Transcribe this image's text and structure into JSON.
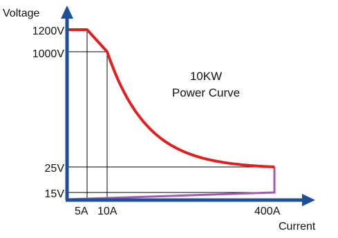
{
  "chart_data": {
    "type": "line",
    "title": "10KW",
    "subtitle": "Power Curve",
    "ylabel": "Voltage",
    "xlabel": "Current",
    "x_ticks": [
      "5A",
      "10A",
      "400A"
    ],
    "y_ticks": [
      "1200V",
      "1000V",
      "25V",
      "15V"
    ],
    "series": [
      {
        "points": [
          [
            0,
            1200
          ],
          [
            5,
            1200
          ],
          [
            10,
            1000
          ],
          [
            20,
            500
          ],
          [
            50,
            200
          ],
          [
            100,
            100
          ],
          [
            200,
            50
          ],
          [
            300,
            33
          ],
          [
            400,
            25
          ],
          [
            400,
            15
          ],
          [
            0,
            0
          ]
        ]
      }
    ],
    "colors": {
      "axis": "#1f4e9b",
      "curve": "#e02020",
      "low_line": "#a05ab4",
      "grid": "#000000"
    }
  }
}
